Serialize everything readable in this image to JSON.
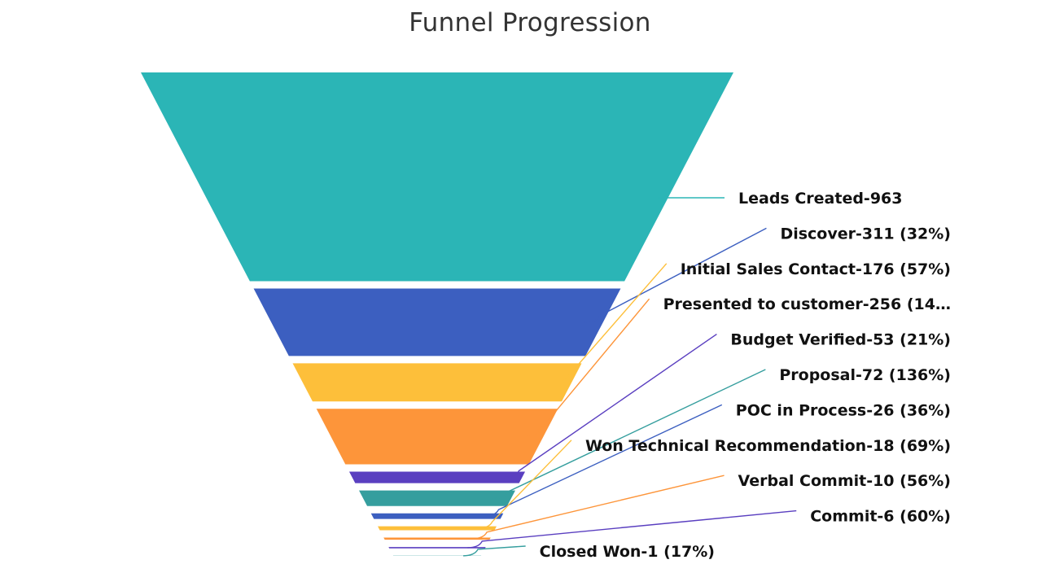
{
  "chart_data": {
    "type": "funnel",
    "title": "Funnel Progression",
    "stages": [
      {
        "name": "Leads Created",
        "value": 963,
        "label": "Leads Created-963",
        "color": "#2BB5B6"
      },
      {
        "name": "Discover",
        "value": 311,
        "label": "Discover-311 (32%)",
        "color": "#3C5FC0"
      },
      {
        "name": "Initial Sales Contact",
        "value": 176,
        "label": "Initial Sales Contact-176 (57%)",
        "color": "#FDBF3A"
      },
      {
        "name": "Presented to customer",
        "value": 256,
        "label": "Presented to customer-256 (14…",
        "color": "#FD953A"
      },
      {
        "name": "Budget Verified",
        "value": 53,
        "label": "Budget Verified-53 (21%)",
        "color": "#5A3FC0"
      },
      {
        "name": "Proposal",
        "value": 72,
        "label": "Proposal-72 (136%)",
        "color": "#359E9E"
      },
      {
        "name": "POC in Process",
        "value": 26,
        "label": "POC in Process-26 (36%)",
        "color": "#3C5FC0"
      },
      {
        "name": "Won Technical Recommendation",
        "value": 18,
        "label": "Won Technical Recommendation-18 (69%)",
        "color": "#FDBF3A"
      },
      {
        "name": "Verbal Commit",
        "value": 10,
        "label": "Verbal Commit-10 (56%)",
        "color": "#FD953A"
      },
      {
        "name": "Commit",
        "value": 6,
        "label": "Commit-6 (60%)",
        "color": "#5A3FC0"
      },
      {
        "name": "Closed Won",
        "value": 1,
        "label": "Closed Won-1 (17%)",
        "color": "#359E9E"
      }
    ]
  }
}
